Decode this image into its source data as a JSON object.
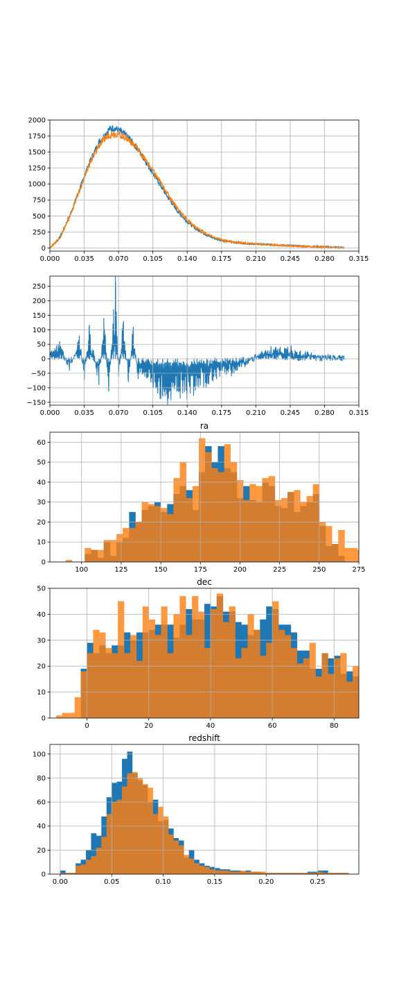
{
  "colors": {
    "blue": "#1f77b4",
    "orange": "#ff7f0e",
    "grid": "#b0b0b0"
  },
  "chart_data": [
    {
      "type": "line",
      "title": "",
      "xlabel": "",
      "ylabel": "",
      "xlim": [
        0,
        0.315
      ],
      "ylim": [
        -50,
        2000
      ],
      "xticks": [
        "0.000",
        "0.035",
        "0.070",
        "0.105",
        "0.140",
        "0.175",
        "0.210",
        "0.245",
        "0.280",
        "0.315"
      ],
      "yticks": [
        "0",
        "250",
        "500",
        "750",
        "1000",
        "1250",
        "1500",
        "1750",
        "2000"
      ],
      "grid": true,
      "series": [
        {
          "color": "#1f77b4",
          "x": [
            0,
            0.01,
            0.02,
            0.03,
            0.04,
            0.05,
            0.06,
            0.065,
            0.07,
            0.08,
            0.09,
            0.1,
            0.11,
            0.12,
            0.13,
            0.14,
            0.15,
            0.16,
            0.17,
            0.18,
            0.19,
            0.2,
            0.21,
            0.22,
            0.23,
            0.24,
            0.25,
            0.26,
            0.27,
            0.28,
            0.29,
            0.3
          ],
          "y": [
            0,
            160,
            490,
            900,
            1320,
            1650,
            1850,
            1880,
            1840,
            1730,
            1540,
            1300,
            1050,
            800,
            580,
            410,
            290,
            200,
            140,
            105,
            85,
            70,
            62,
            55,
            47,
            40,
            32,
            25,
            20,
            15,
            10,
            5
          ]
        },
        {
          "color": "#ff7f0e",
          "x": [
            0,
            0.01,
            0.02,
            0.03,
            0.04,
            0.05,
            0.06,
            0.065,
            0.07,
            0.08,
            0.09,
            0.1,
            0.11,
            0.12,
            0.13,
            0.14,
            0.15,
            0.16,
            0.17,
            0.18,
            0.19,
            0.2,
            0.21,
            0.22,
            0.23,
            0.24,
            0.25,
            0.26,
            0.27,
            0.28,
            0.29,
            0.3
          ],
          "y": [
            0,
            150,
            480,
            890,
            1300,
            1600,
            1770,
            1790,
            1780,
            1700,
            1540,
            1320,
            1090,
            850,
            620,
            440,
            310,
            215,
            150,
            110,
            88,
            72,
            62,
            53,
            45,
            38,
            30,
            23,
            18,
            13,
            9,
            5
          ]
        }
      ]
    },
    {
      "type": "line",
      "title": "",
      "xlabel": "",
      "ylabel": "",
      "xlim": [
        0,
        0.315
      ],
      "ylim": [
        -160,
        285
      ],
      "xticks": [
        "0.000",
        "0.035",
        "0.070",
        "0.105",
        "0.140",
        "0.175",
        "0.210",
        "0.245",
        "0.280",
        "0.315"
      ],
      "yticks": [
        "−150",
        "−100",
        "−50",
        "0",
        "50",
        "100",
        "150",
        "200",
        "250"
      ],
      "grid": true,
      "series": [
        {
          "color": "#1f77b4",
          "x": [
            0,
            0.01,
            0.02,
            0.03,
            0.035,
            0.04,
            0.05,
            0.055,
            0.06,
            0.065,
            0.067,
            0.07,
            0.075,
            0.08,
            0.085,
            0.09,
            0.1,
            0.105,
            0.11,
            0.115,
            0.12,
            0.13,
            0.14,
            0.15,
            0.16,
            0.17,
            0.18,
            0.19,
            0.2,
            0.21,
            0.22,
            0.23,
            0.24,
            0.25,
            0.26,
            0.27,
            0.28,
            0.29,
            0.3
          ],
          "y": [
            20,
            60,
            -40,
            80,
            -70,
            110,
            -90,
            140,
            -110,
            170,
            265,
            -60,
            130,
            -80,
            110,
            -70,
            -60,
            -100,
            -120,
            -130,
            -140,
            -110,
            -120,
            -95,
            -85,
            -70,
            -55,
            -40,
            -20,
            15,
            30,
            40,
            35,
            30,
            20,
            12,
            8,
            5,
            3
          ]
        }
      ]
    },
    {
      "type": "bar",
      "title": "ra",
      "xlim": [
        80,
        275
      ],
      "ylim": [
        0,
        65
      ],
      "xticks": [
        "100",
        "125",
        "150",
        "175",
        "200",
        "225",
        "250",
        "275"
      ],
      "yticks": [
        "0",
        "10",
        "20",
        "30",
        "40",
        "50",
        "60"
      ],
      "grid": true,
      "bin_start": 90,
      "bin_width": 4,
      "series": [
        {
          "color": "#1f77b4",
          "alpha": 1,
          "values": [
            0,
            0,
            0,
            4,
            6,
            2,
            10,
            3,
            10,
            12,
            25,
            20,
            26,
            28,
            30,
            25,
            29,
            34,
            38,
            36,
            26,
            45,
            58,
            50,
            58,
            47,
            45,
            32,
            38,
            31,
            30,
            40,
            38,
            28,
            27,
            35,
            25,
            28,
            30,
            34,
            18,
            8,
            9,
            3,
            0,
            0,
            0,
            0,
            0
          ]
        },
        {
          "color": "#ff7f0e",
          "alpha": 0.8,
          "values": [
            1,
            0,
            0,
            7,
            6,
            6,
            11,
            11,
            14,
            17,
            17,
            20,
            30,
            29,
            28,
            27,
            24,
            42,
            50,
            32,
            38,
            62,
            55,
            47,
            45,
            59,
            50,
            41,
            31,
            39,
            38,
            42,
            43,
            31,
            32,
            35,
            36,
            30,
            33,
            39,
            20,
            18,
            9,
            16,
            7,
            7,
            6,
            6,
            3
          ]
        }
      ]
    },
    {
      "type": "bar",
      "title": "dec",
      "xlim": [
        -12,
        88
      ],
      "ylim": [
        0,
        50
      ],
      "xticks": [
        "0",
        "20",
        "40",
        "60",
        "80"
      ],
      "yticks": [
        "0",
        "10",
        "20",
        "30",
        "40",
        "50"
      ],
      "grid": true,
      "bin_start": -10,
      "bin_width": 2,
      "series": [
        {
          "color": "#1f77b4",
          "alpha": 1,
          "values": [
            0,
            0,
            0,
            0,
            19,
            29,
            25,
            28,
            25,
            28,
            28,
            33,
            30,
            33,
            33,
            34,
            36,
            36,
            36,
            31,
            36,
            42,
            38,
            38,
            44,
            43,
            47,
            41,
            41,
            37,
            36,
            32,
            34,
            38,
            43,
            42,
            36,
            36,
            33,
            26,
            26,
            19,
            19,
            25,
            23,
            24,
            17,
            18,
            16,
            14,
            10,
            8,
            6,
            4,
            3,
            2,
            0,
            0,
            0,
            0
          ]
        },
        {
          "color": "#ff7f0e",
          "alpha": 0.8,
          "values": [
            1,
            2,
            2,
            8,
            18,
            25,
            34,
            33,
            27,
            25,
            45,
            25,
            32,
            22,
            43,
            38,
            32,
            43,
            25,
            40,
            47,
            32,
            47,
            41,
            27,
            42,
            48,
            37,
            43,
            23,
            27,
            40,
            34,
            24,
            29,
            45,
            34,
            32,
            27,
            21,
            23,
            29,
            16,
            25,
            17,
            23,
            25,
            14,
            20,
            17,
            17,
            10,
            11,
            5,
            3,
            2,
            2,
            1,
            0,
            0
          ]
        }
      ]
    },
    {
      "type": "bar",
      "title": "redshift",
      "xlim": [
        -0.01,
        0.29
      ],
      "ylim": [
        0,
        108
      ],
      "xticks": [
        "0.00",
        "0.05",
        "0.10",
        "0.15",
        "0.20",
        "0.25"
      ],
      "yticks": [
        "0",
        "20",
        "40",
        "60",
        "80",
        "100"
      ],
      "grid": true,
      "bin_start": 0,
      "bin_width": 0.005,
      "series": [
        {
          "color": "#1f77b4",
          "alpha": 1,
          "values": [
            3,
            1,
            1,
            9,
            12,
            20,
            34,
            32,
            48,
            64,
            76,
            77,
            96,
            102,
            84,
            78,
            74,
            60,
            62,
            44,
            45,
            38,
            30,
            28,
            14,
            20,
            12,
            9,
            7,
            6,
            5,
            4,
            4,
            3,
            3,
            2,
            3,
            2,
            2,
            1,
            1,
            1,
            1,
            1,
            1,
            1,
            1,
            1,
            2,
            2,
            3,
            3,
            1,
            1,
            1,
            1
          ]
        },
        {
          "color": "#ff7f0e",
          "alpha": 0.8,
          "values": [
            1,
            1,
            1,
            7,
            8,
            12,
            15,
            22,
            31,
            50,
            60,
            62,
            73,
            84,
            85,
            80,
            75,
            72,
            50,
            56,
            48,
            33,
            28,
            24,
            16,
            13,
            9,
            7,
            6,
            4,
            3,
            3,
            3,
            2,
            2,
            3,
            2,
            2,
            2,
            2,
            1,
            1,
            1,
            1,
            1,
            1,
            1,
            1,
            1,
            1,
            2,
            1,
            1,
            1,
            1,
            1
          ]
        }
      ]
    }
  ]
}
